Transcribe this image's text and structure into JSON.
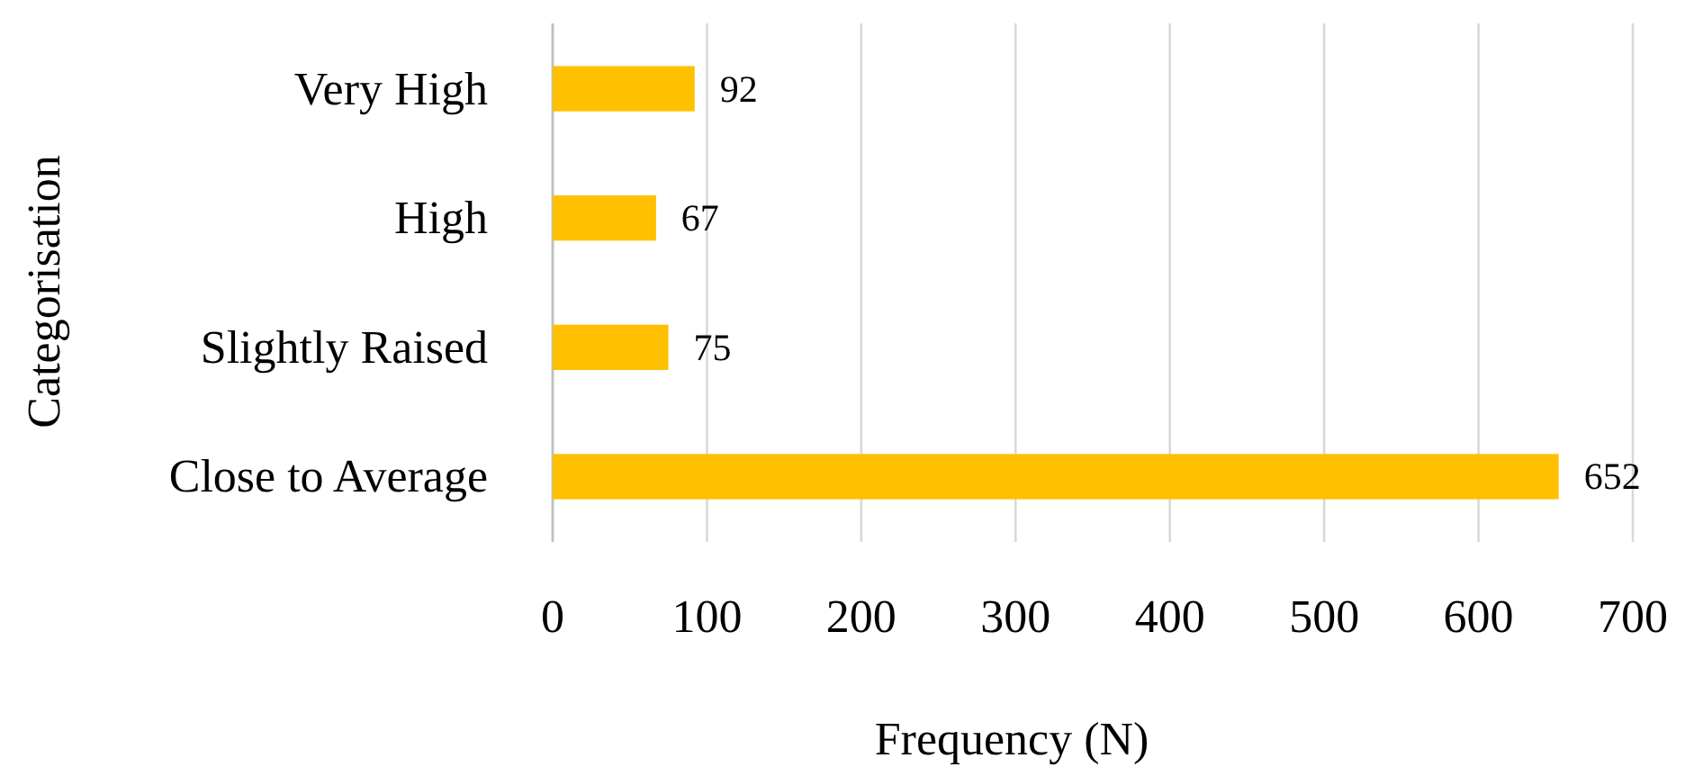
{
  "chart_data": {
    "type": "bar",
    "orientation": "horizontal",
    "ylabel": "Categorisation",
    "xlabel": "Frequency (N)",
    "categories": [
      "Very High",
      "High",
      "Slightly Raised",
      "Close to Average"
    ],
    "values": [
      92,
      67,
      75,
      652
    ],
    "color": "#ffc000",
    "data_labels": true,
    "xlim": [
      0,
      700
    ],
    "xticks": [
      0,
      100,
      200,
      300,
      400,
      500,
      600,
      700
    ],
    "grid": "x"
  }
}
